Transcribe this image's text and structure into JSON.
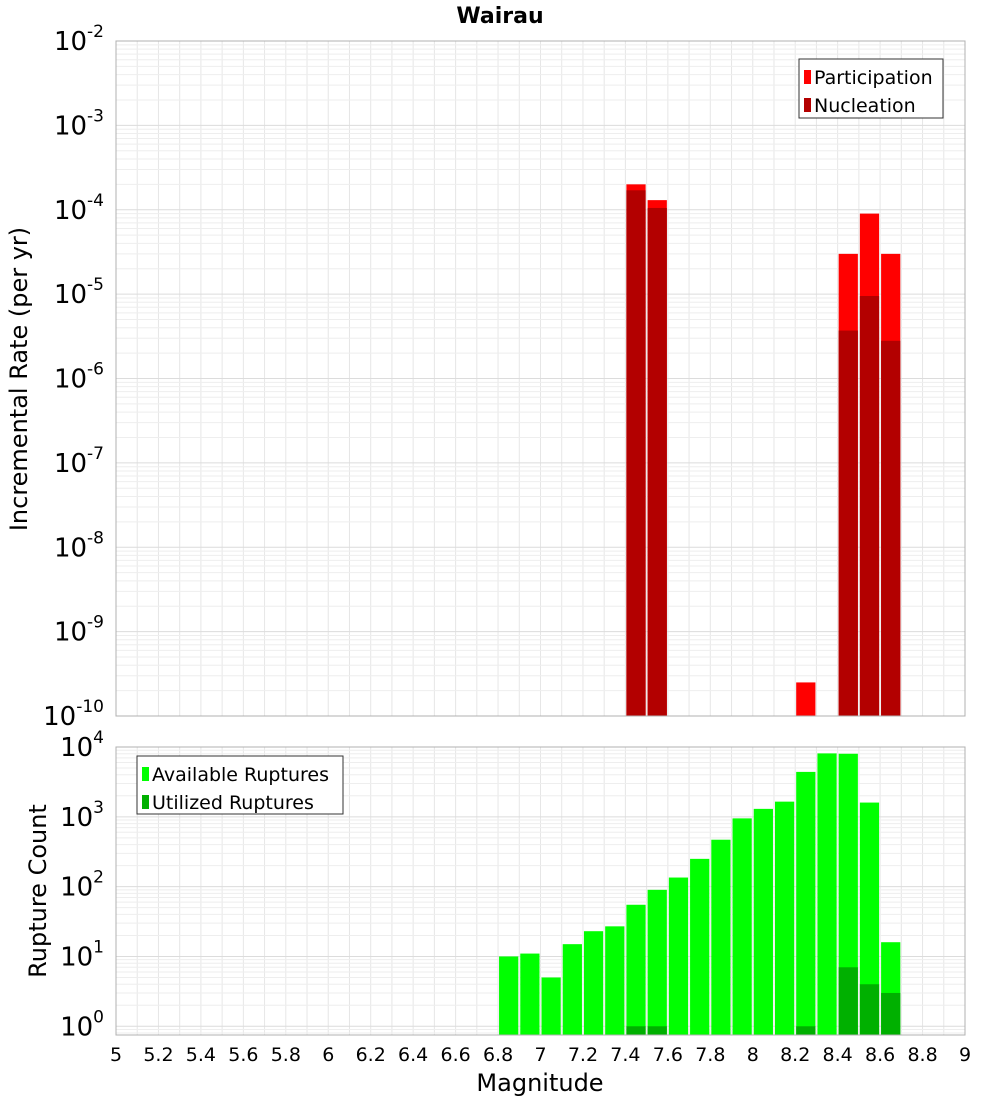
{
  "chart_data": [
    {
      "type": "bar",
      "title": "Wairau",
      "xlabel": "",
      "ylabel": "Incremental Rate (per yr)",
      "yscale": "log",
      "ylim": [
        1e-10,
        0.01
      ],
      "xlim": [
        5,
        9
      ],
      "bin_width": 0.1,
      "grid": true,
      "legend_position": "top-right",
      "series": [
        {
          "name": "Participation",
          "color": "#ff0000",
          "x": [
            7.45,
            7.55,
            8.25,
            8.45,
            8.55,
            8.65
          ],
          "values": [
            0.0002,
            0.00013,
            2.5e-10,
            3e-05,
            9e-05,
            3e-05
          ]
        },
        {
          "name": "Nucleation",
          "color": "#b30000",
          "x": [
            7.45,
            7.55,
            8.45,
            8.55,
            8.65
          ],
          "values": [
            0.00017,
            0.000105,
            3.7e-06,
            9.5e-06,
            2.8e-06
          ]
        }
      ]
    },
    {
      "type": "bar",
      "title": "",
      "xlabel": "Magnitude",
      "ylabel": "Rupture Count",
      "yscale": "log",
      "ylim": [
        0.75,
        10000
      ],
      "xlim": [
        5,
        9
      ],
      "bin_width": 0.1,
      "grid": true,
      "legend_position": "top-left",
      "x_ticks": [
        "5",
        "5.2",
        "5.4",
        "5.6",
        "5.8",
        "6",
        "6.2",
        "6.4",
        "6.6",
        "6.8",
        "7",
        "7.2",
        "7.4",
        "7.6",
        "7.8",
        "8",
        "8.2",
        "8.4",
        "8.6",
        "8.8",
        "9"
      ],
      "series": [
        {
          "name": "Available Ruptures",
          "color": "#00ff00",
          "x": [
            6.85,
            6.95,
            7.05,
            7.15,
            7.25,
            7.35,
            7.45,
            7.55,
            7.65,
            7.75,
            7.85,
            7.95,
            8.05,
            8.15,
            8.25,
            8.35,
            8.45,
            8.55,
            8.65
          ],
          "values": [
            10,
            11,
            5,
            15,
            23,
            27,
            55,
            90,
            135,
            250,
            470,
            950,
            1300,
            1650,
            4400,
            8100,
            8000,
            1600,
            16
          ]
        },
        {
          "name": "Utilized Ruptures",
          "color": "#00b000",
          "x": [
            7.45,
            7.55,
            8.25,
            8.45,
            8.55,
            8.65
          ],
          "values": [
            1,
            1,
            1,
            7,
            4,
            3
          ]
        }
      ]
    }
  ]
}
